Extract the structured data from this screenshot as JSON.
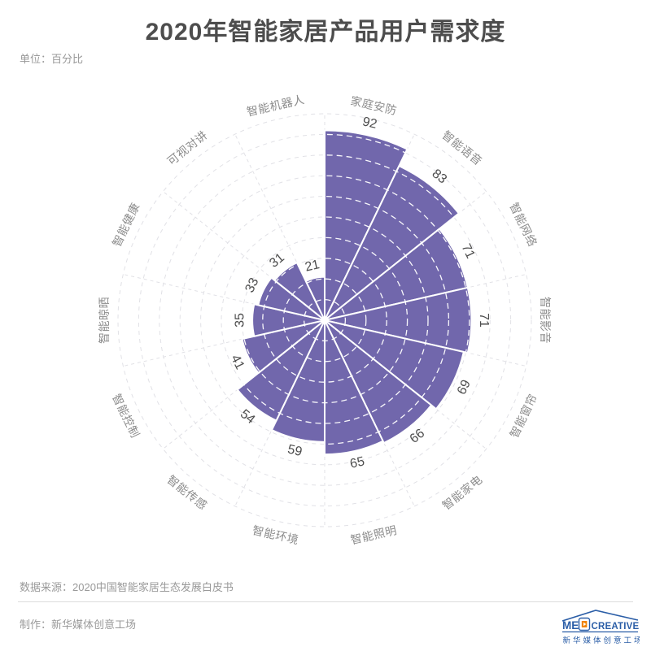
{
  "page": {
    "title": "2020年智能家居产品用户需求度",
    "unit_label": "单位：百分比"
  },
  "chart_data": {
    "type": "polar-rose-bar",
    "title": "2020年智能家居产品用户需求度",
    "unit": "百分比",
    "categories": [
      "家庭安防",
      "智能语音",
      "智能网络",
      "智能影音",
      "智能窗帘",
      "智能家电",
      "智能照明",
      "智能环境",
      "智能传感",
      "智能控制",
      "智能晾晒",
      "智能健康",
      "可视对讲",
      "智能机器人"
    ],
    "values": [
      92,
      83,
      71,
      71,
      69,
      66,
      65,
      59,
      54,
      41,
      35,
      33,
      31,
      21
    ],
    "radial_axis": {
      "min": 0,
      "max": 100,
      "interval": 10
    },
    "start_angle_deg": 0,
    "direction": "clockwise",
    "grid": "dashed circles and spokes",
    "legend": "none",
    "colors": {
      "sector_fill": "#7167AC",
      "sector_border": "#ffffff",
      "grid_line": "#e1e1e6",
      "inner_grid_line": "#ffffff",
      "value_label": "#4d4d4d",
      "category_label": "#8c8c8c"
    }
  },
  "footer": {
    "source": "数据来源：2020中国智能家居生态发展白皮书",
    "maker": "制作：新华媒体创意工场",
    "logo": {
      "text_left": "ME",
      "text_right": "CREATIVE",
      "subtext": "新华媒体创意工场",
      "blue": "#2B5EA7",
      "orange": "#F08300"
    }
  }
}
